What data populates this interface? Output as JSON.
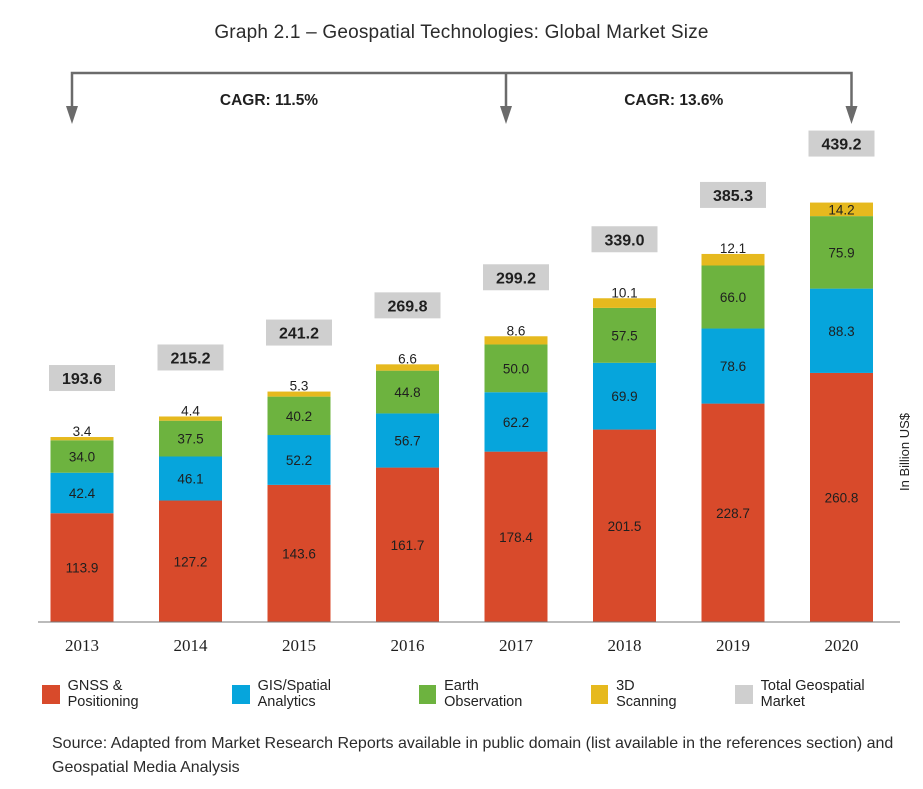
{
  "chart_data": {
    "type": "bar",
    "stacked": true,
    "title": "Graph 2.1 – Geospatial Technologies: Global Market Size",
    "xlabel": "",
    "ylabel": "In Billion US$",
    "categories": [
      "2013",
      "2014",
      "2015",
      "2016",
      "2017",
      "2018",
      "2019",
      "2020"
    ],
    "series": [
      {
        "name": "GNSS & Positioning",
        "color": "#d84a2b",
        "values": [
          113.9,
          127.2,
          143.6,
          161.7,
          178.4,
          201.5,
          228.7,
          260.8
        ],
        "labels": [
          "113.9",
          "127.2",
          "143.6",
          "161.7",
          "178.4",
          "201.5",
          "228.7",
          "260.8"
        ]
      },
      {
        "name": "GIS/Spatial Analytics",
        "color": "#06a5dc",
        "values": [
          42.4,
          46.1,
          52.2,
          56.7,
          62.2,
          69.9,
          78.6,
          88.3
        ],
        "labels": [
          "42.4",
          "46.1",
          "52.2",
          "56.7",
          "62.2",
          "69.9",
          "78.6",
          "88.3"
        ]
      },
      {
        "name": "Earth Observation",
        "color": "#6db33f",
        "values": [
          34.0,
          37.5,
          40.2,
          44.8,
          50.0,
          57.5,
          66.0,
          75.9
        ],
        "labels": [
          "34.0",
          "37.5",
          "40.2",
          "44.8",
          "50.0",
          "57.5",
          "66.0",
          "75.9"
        ]
      },
      {
        "name": "3D Scanning",
        "color": "#e6b91e",
        "values": [
          3.4,
          4.4,
          5.3,
          6.6,
          8.6,
          10.1,
          12.1,
          14.2
        ],
        "labels": [
          "3.4",
          "4.4",
          "5.3",
          "6.6",
          "8.6",
          "10.1",
          "12.1",
          "14.2"
        ]
      }
    ],
    "totals": {
      "name": "Total Geospatial Market",
      "color": "#cfcfcf",
      "values": [
        193.6,
        215.2,
        241.2,
        269.8,
        299.2,
        339.0,
        385.3,
        439.2
      ],
      "labels": [
        "193.6",
        "215.2",
        "241.2",
        "269.8",
        "299.2",
        "339.0",
        "385.3",
        "439.2"
      ]
    },
    "annotations": [
      {
        "text": "CAGR: 11.5%",
        "from": "2013",
        "to": "2017"
      },
      {
        "text": "CAGR: 13.6%",
        "from": "2017",
        "to": "2020"
      }
    ],
    "grid": false,
    "legend_position": "bottom",
    "ylim": [
      0,
      460
    ]
  },
  "source_note": "Source: Adapted from Market Research Reports available in public domain (list available in the references section) and Geospatial Media Analysis"
}
